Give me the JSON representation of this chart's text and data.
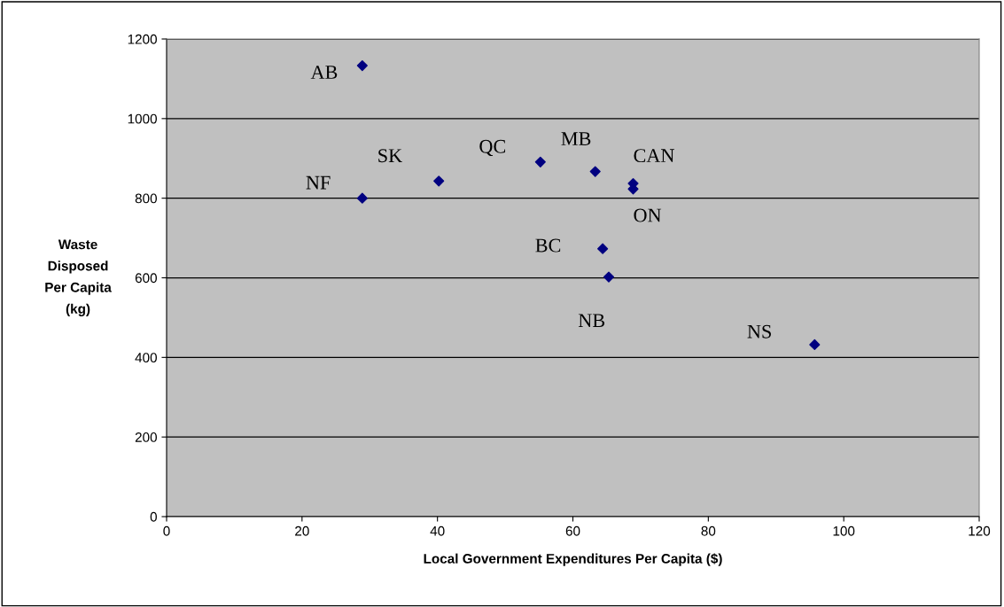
{
  "chart_data": {
    "type": "scatter",
    "xlabel": "Local Government Expenditures Per Capita ($)",
    "ylabel": "Waste\nDisposed\nPer Capita\n(kg)",
    "series": [
      {
        "color": "#000080",
        "x": [
          28.9,
          28.9,
          40.2,
          55.2,
          63.3,
          68.9,
          68.9,
          64.4,
          65.3,
          95.7
        ],
        "values": [
          1133,
          800,
          843,
          891,
          867,
          837,
          823,
          673,
          602,
          432
        ]
      }
    ],
    "annotations": [
      {
        "text": "AB",
        "x": 28.9,
        "y": 1133
      },
      {
        "text": "NF",
        "x": 28.9,
        "y": 800
      },
      {
        "text": "SK",
        "x": 40.2,
        "y": 843
      },
      {
        "text": "QC",
        "x": 55.2,
        "y": 891
      },
      {
        "text": "MB",
        "x": 63.3,
        "y": 867
      },
      {
        "text": "CAN",
        "x": 68.9,
        "y": 837
      },
      {
        "text": "ON",
        "x": 68.9,
        "y": 823
      },
      {
        "text": "BC",
        "x": 64.4,
        "y": 673
      },
      {
        "text": "NB",
        "x": 65.3,
        "y": 602
      },
      {
        "text": "NS",
        "x": 95.7,
        "y": 432
      }
    ],
    "xlim": [
      0,
      120
    ],
    "xticks": [
      0,
      20,
      40,
      60,
      80,
      100,
      120
    ],
    "ylim": [
      0,
      1200
    ],
    "yticks": [
      0,
      200,
      400,
      600,
      800,
      1000,
      1200
    ],
    "grid": "y",
    "marker": "diamond",
    "legend": false
  }
}
